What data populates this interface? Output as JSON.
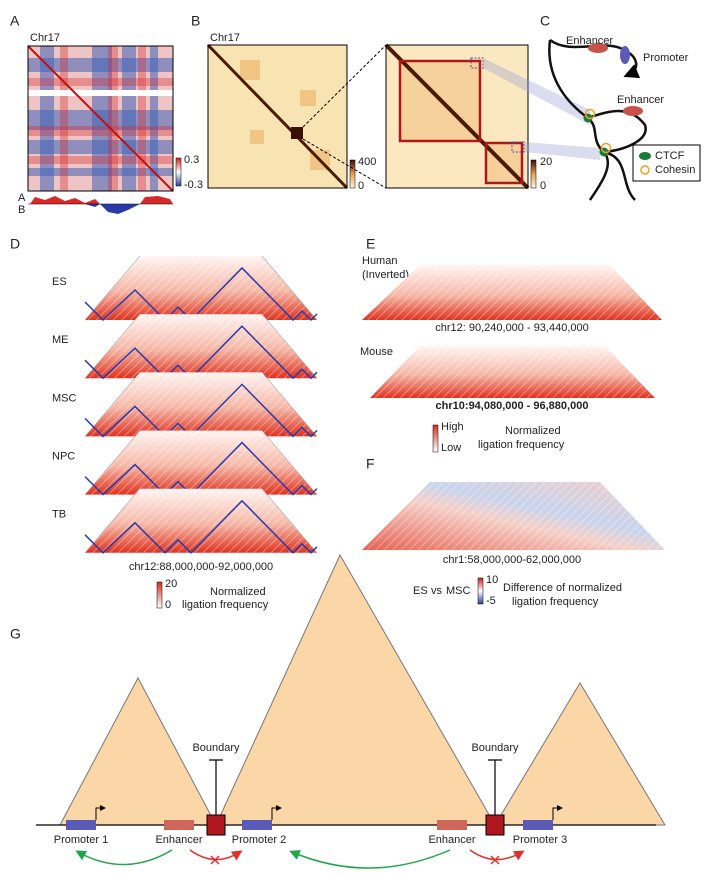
{
  "panels": {
    "A": {
      "letter": "A",
      "label": "Chr17",
      "colorbar": [
        "0.3",
        "-0.3"
      ],
      "compartments": [
        "A",
        "B"
      ]
    },
    "B": {
      "letter": "B",
      "label": "Chr17",
      "colorbar_left": [
        "400",
        "0"
      ],
      "colorbar_right": [
        "20",
        "0"
      ]
    },
    "C": {
      "letter": "C",
      "labels": [
        "Enhancer",
        "Promoter",
        "Enhancer"
      ],
      "legend": [
        "CTCF",
        "Cohesin"
      ]
    },
    "D": {
      "letter": "D",
      "rows": [
        "ES",
        "ME",
        "MSC",
        "NPC",
        "TB"
      ],
      "coords": "chr12:88,000,000-92,000,000",
      "colorbar": [
        "20",
        "0"
      ],
      "caption": [
        "Normalized",
        "ligation frequency"
      ]
    },
    "E": {
      "letter": "E",
      "human": [
        "Human",
        "(Inverted)"
      ],
      "human_coords": "chr12: 90,240,000 - 93,440,000",
      "mouse": "Mouse",
      "mouse_coords": "chr10:94,080,000 - 96,880,000",
      "levels": [
        "High",
        "Low"
      ],
      "caption": [
        "Normalized",
        "ligation frequency"
      ]
    },
    "F": {
      "letter": "F",
      "coords": "chr1:58,000,000-62,000,000",
      "colorbar": [
        "10",
        "-5"
      ],
      "es": "ES",
      "vs": "vs",
      "msc": "MSC",
      "caption": [
        "Difference of normalized",
        "ligation frequency"
      ]
    },
    "G": {
      "letter": "G",
      "boundaries": [
        "Boundary",
        "Boundary"
      ],
      "promoters": [
        "Promoter 1",
        "Promoter 2",
        "Promoter 3"
      ],
      "enhancers": [
        "Enhancer",
        "Enhancer"
      ]
    }
  }
}
